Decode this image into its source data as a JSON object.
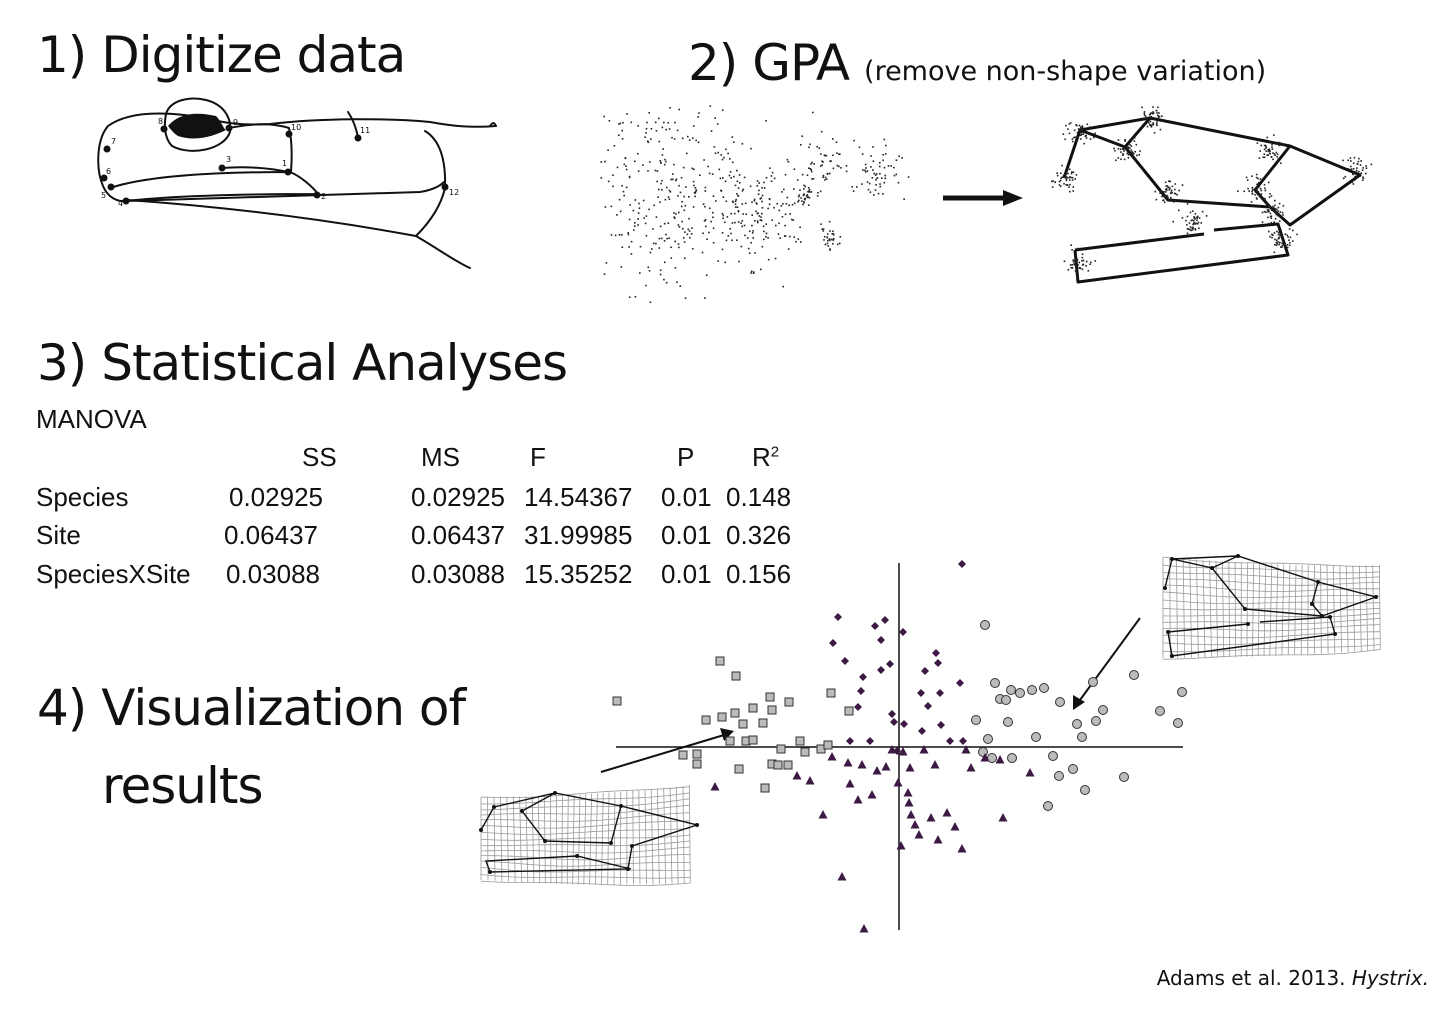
{
  "steps": {
    "step1": "1) Digitize data",
    "step2": "2) GPA",
    "step2_note": "(remove non-shape variation)",
    "step3": "3) Statistical Analyses",
    "step4_line1": "4) Visualization of",
    "step4_line2": "results"
  },
  "landmark_numbers": [
    "1",
    "2",
    "3",
    "4",
    "5",
    "6",
    "7",
    "8",
    "9",
    "10",
    "11",
    "12"
  ],
  "manova": {
    "label": "MANOVA",
    "headers": {
      "ss": "SS",
      "ms": "MS",
      "f": "F",
      "p": "P",
      "r2": "R",
      "r2_sup": "2"
    },
    "rows": [
      {
        "name": "Species",
        "ss": "0.02925",
        "ms": "0.02925",
        "f": "14.54367",
        "p": "0.01",
        "r2": "0.148"
      },
      {
        "name": "Site",
        "ss": "0.06437",
        "ms": "0.06437",
        "f": "31.99985",
        "p": "0.01",
        "r2": "0.326"
      },
      {
        "name": "SpeciesXSite",
        "ss": "0.03088",
        "ms": "0.03088",
        "f": "15.35252",
        "p": "0.01",
        "r2": "0.156"
      }
    ]
  },
  "citation": {
    "authors": "Adams et al. 2013.",
    "journal": "Hystrix."
  },
  "colors": {
    "text": "#111111",
    "purple": "#3d1a44",
    "gray_fill": "#bbbbbb",
    "grid": "#9a9a9a"
  }
}
